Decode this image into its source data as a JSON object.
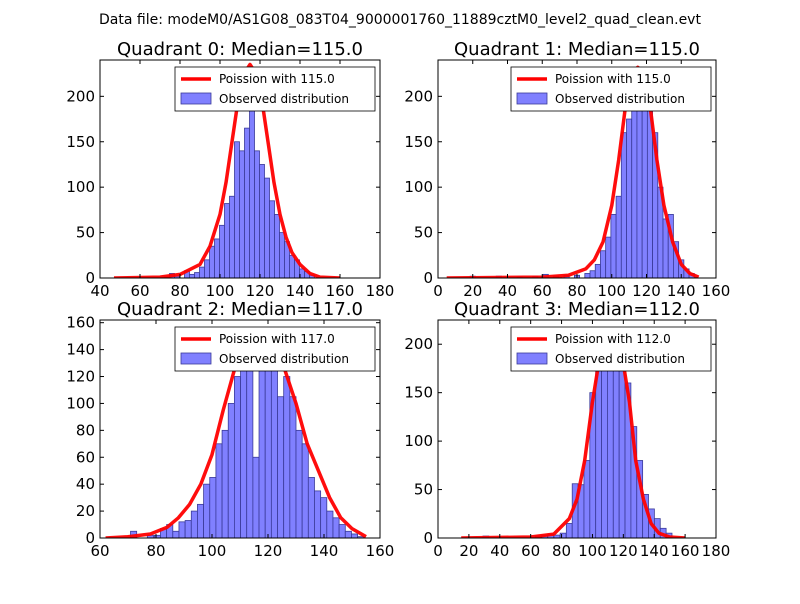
{
  "figure_title": "Data file: modeM0/AS1G08_083T04_9000001760_11889cztM0_level2_quad_clean.evt",
  "colors": {
    "bar_fill": "#8080ff",
    "bar_stroke": "#3a3a99",
    "curve": "#ff0000"
  },
  "chart_data": [
    {
      "type": "bar",
      "title": "Quadrant 0: Median=115.0",
      "xlim": [
        40,
        180
      ],
      "ylim": [
        0,
        240
      ],
      "xticks": [
        40,
        60,
        80,
        100,
        120,
        140,
        160,
        180
      ],
      "yticks": [
        0,
        50,
        100,
        150,
        200
      ],
      "legend": {
        "position": "top-right",
        "line_label": "Poission with 115.0",
        "bar_label": "Observed distribution"
      },
      "bin_width": 2.5,
      "bars": [
        [
          73.5,
          1
        ],
        [
          76,
          5
        ],
        [
          78.5,
          2
        ],
        [
          83.5,
          8
        ],
        [
          86,
          4
        ],
        [
          88.5,
          6
        ],
        [
          91,
          12
        ],
        [
          93.5,
          20
        ],
        [
          96,
          35
        ],
        [
          98.5,
          43
        ],
        [
          101,
          58
        ],
        [
          103.5,
          82
        ],
        [
          106,
          90
        ],
        [
          108.5,
          150
        ],
        [
          111,
          140
        ],
        [
          113.5,
          165
        ],
        [
          116,
          210
        ],
        [
          118.5,
          140
        ],
        [
          121,
          125
        ],
        [
          123.5,
          110
        ],
        [
          126,
          85
        ],
        [
          128.5,
          70
        ],
        [
          131,
          50
        ],
        [
          133.5,
          40
        ],
        [
          136,
          25
        ],
        [
          138.5,
          20
        ],
        [
          141,
          10
        ],
        [
          143.5,
          7
        ],
        [
          146,
          3
        ]
      ],
      "curve_x": [
        47,
        70,
        80,
        90,
        95,
        100,
        103,
        106,
        109,
        112,
        115,
        118,
        121,
        124,
        127,
        130,
        133,
        136,
        140,
        145,
        150,
        160
      ],
      "curve_y": [
        0,
        1,
        4,
        15,
        35,
        70,
        105,
        150,
        195,
        225,
        235,
        225,
        195,
        150,
        105,
        70,
        45,
        28,
        15,
        5,
        1,
        0
      ]
    },
    {
      "type": "bar",
      "title": "Quadrant 1: Median=115.0",
      "xlim": [
        0,
        160
      ],
      "ylim": [
        0,
        240
      ],
      "xticks": [
        0,
        20,
        40,
        60,
        80,
        100,
        120,
        140,
        160
      ],
      "yticks": [
        0,
        50,
        100,
        150,
        200
      ],
      "legend": {
        "position": "top-right",
        "line_label": "Poission with 115.0",
        "bar_label": "Observed distribution"
      },
      "bin_width": 3,
      "bars": [
        [
          20,
          2
        ],
        [
          35,
          2
        ],
        [
          47,
          1
        ],
        [
          56,
          2
        ],
        [
          62,
          4
        ],
        [
          68,
          2
        ],
        [
          74,
          3
        ],
        [
          80,
          3
        ],
        [
          86,
          5
        ],
        [
          89,
          8
        ],
        [
          92,
          15
        ],
        [
          95,
          30
        ],
        [
          98,
          45
        ],
        [
          101,
          70
        ],
        [
          104,
          90
        ],
        [
          107,
          160
        ],
        [
          110,
          175
        ],
        [
          113,
          205
        ],
        [
          116,
          230
        ],
        [
          119,
          225
        ],
        [
          122,
          205
        ],
        [
          125,
          160
        ],
        [
          128,
          100
        ],
        [
          131,
          65
        ],
        [
          134,
          70
        ],
        [
          137,
          40
        ],
        [
          140,
          20
        ],
        [
          143,
          10
        ],
        [
          146,
          5
        ]
      ],
      "curve_x": [
        5,
        60,
        75,
        85,
        90,
        95,
        100,
        104,
        108,
        112,
        115,
        118,
        122,
        126,
        130,
        135,
        140,
        145,
        150
      ],
      "curve_y": [
        0,
        1,
        3,
        10,
        20,
        40,
        80,
        130,
        190,
        225,
        232,
        225,
        190,
        130,
        80,
        40,
        15,
        5,
        1
      ]
    },
    {
      "type": "bar",
      "title": "Quadrant 2: Median=117.0",
      "xlim": [
        60,
        160
      ],
      "ylim": [
        0,
        162
      ],
      "xticks": [
        60,
        80,
        100,
        120,
        140,
        160
      ],
      "yticks": [
        0,
        20,
        40,
        60,
        80,
        100,
        120,
        140,
        160
      ],
      "legend": {
        "position": "top-right",
        "line_label": "Poission with 117.0",
        "bar_label": "Observed distribution"
      },
      "bin_width": 2.2,
      "bars": [
        [
          72,
          5
        ],
        [
          78,
          2
        ],
        [
          80.5,
          2
        ],
        [
          82.7,
          7
        ],
        [
          84.9,
          10
        ],
        [
          87.1,
          5
        ],
        [
          89.3,
          12
        ],
        [
          91.5,
          13
        ],
        [
          93.7,
          20
        ],
        [
          95.9,
          25
        ],
        [
          98.1,
          40
        ],
        [
          100.3,
          45
        ],
        [
          102.5,
          70
        ],
        [
          104.7,
          80
        ],
        [
          106.9,
          100
        ],
        [
          109.1,
          120
        ],
        [
          111.3,
          140
        ],
        [
          113.5,
          150
        ],
        [
          115.7,
          60
        ],
        [
          117.9,
          145
        ],
        [
          120.1,
          155
        ],
        [
          122.3,
          150
        ],
        [
          124.5,
          105
        ],
        [
          126.7,
          120
        ],
        [
          128.9,
          105
        ],
        [
          131.1,
          80
        ],
        [
          133.3,
          70
        ],
        [
          135.5,
          45
        ],
        [
          137.7,
          35
        ],
        [
          139.9,
          30
        ],
        [
          142.1,
          20
        ],
        [
          144.3,
          15
        ],
        [
          146.5,
          10
        ],
        [
          148.7,
          5
        ],
        [
          150.9,
          3
        ],
        [
          153.1,
          1
        ]
      ],
      "curve_x": [
        62,
        70,
        78,
        84,
        88,
        92,
        96,
        100,
        104,
        108,
        112,
        117,
        122,
        126,
        130,
        134,
        138,
        142,
        146,
        150,
        155
      ],
      "curve_y": [
        0,
        1,
        3,
        8,
        15,
        25,
        40,
        62,
        95,
        125,
        148,
        155,
        148,
        125,
        100,
        70,
        50,
        30,
        15,
        7,
        1
      ]
    },
    {
      "type": "bar",
      "title": "Quadrant 3: Median=112.0",
      "xlim": [
        0,
        180
      ],
      "ylim": [
        0,
        225
      ],
      "xticks": [
        0,
        20,
        40,
        60,
        80,
        100,
        120,
        140,
        160,
        180
      ],
      "yticks": [
        0,
        50,
        100,
        150,
        200
      ],
      "legend": {
        "position": "top-right",
        "line_label": "Poission with 112.0",
        "bar_label": "Observed distribution"
      },
      "bin_width": 3.8,
      "bars": [
        [
          31,
          2
        ],
        [
          65,
          2
        ],
        [
          69,
          3
        ],
        [
          73,
          4
        ],
        [
          77,
          3
        ],
        [
          81,
          5
        ],
        [
          85,
          15
        ],
        [
          88.8,
          56
        ],
        [
          92.6,
          55
        ],
        [
          96.4,
          80
        ],
        [
          100.2,
          150
        ],
        [
          104,
          190
        ],
        [
          107.8,
          200
        ],
        [
          111.6,
          180
        ],
        [
          115.4,
          210
        ],
        [
          119.2,
          190
        ],
        [
          123,
          160
        ],
        [
          126.8,
          115
        ],
        [
          130.6,
          80
        ],
        [
          134.4,
          45
        ],
        [
          138.2,
          30
        ],
        [
          142,
          20
        ],
        [
          145.8,
          10
        ],
        [
          149.6,
          5
        ]
      ],
      "curve_x": [
        15,
        60,
        75,
        85,
        90,
        95,
        100,
        105,
        109,
        112,
        115,
        119,
        124,
        128,
        133,
        138,
        143,
        150,
        160
      ],
      "curve_y": [
        0,
        1,
        4,
        20,
        40,
        80,
        140,
        190,
        210,
        212,
        210,
        190,
        140,
        80,
        40,
        15,
        5,
        1,
        0
      ]
    }
  ]
}
